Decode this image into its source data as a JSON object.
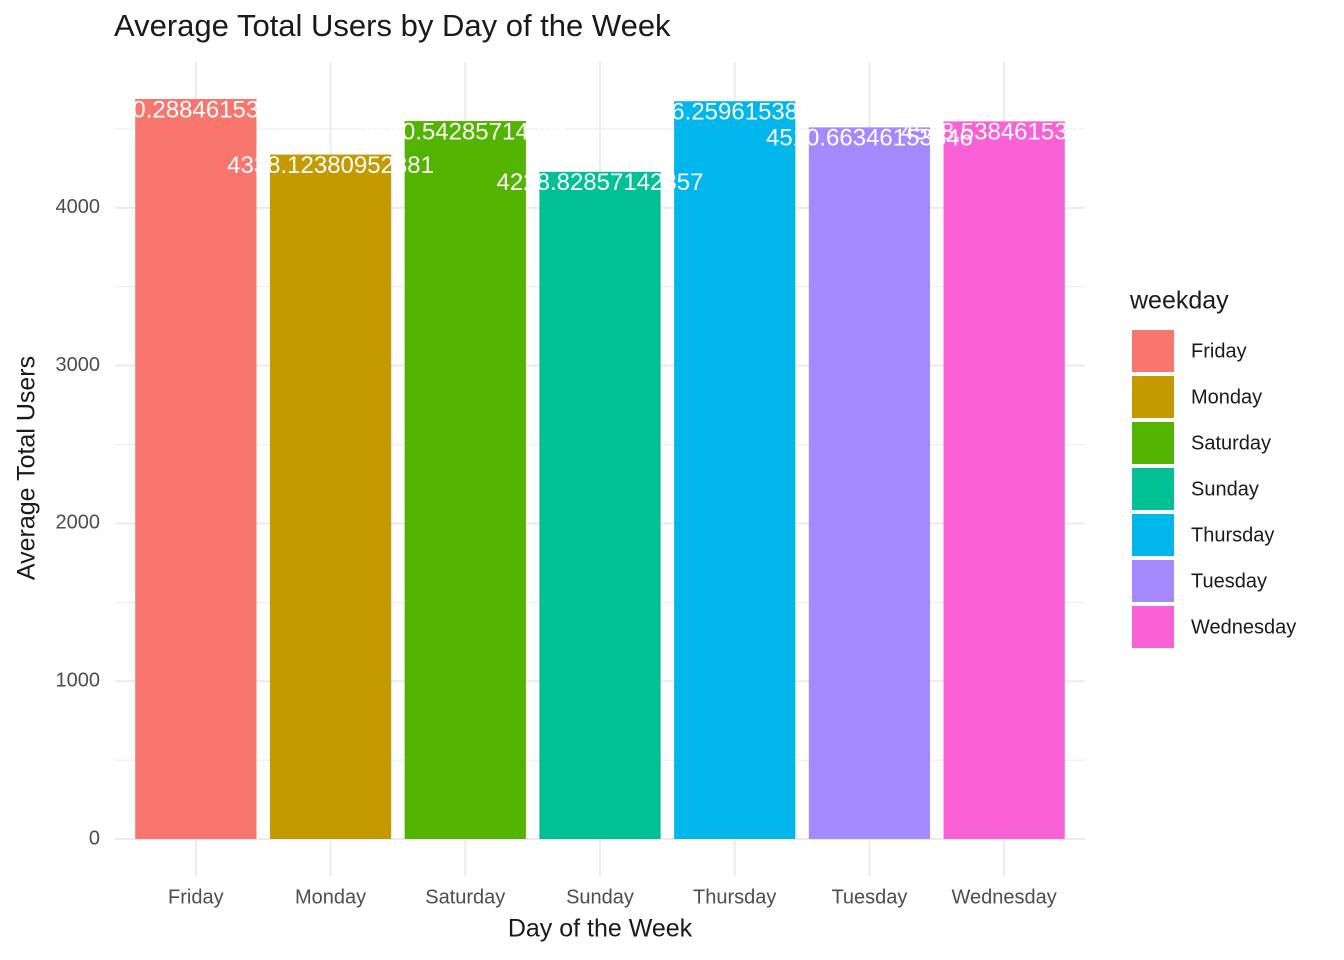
{
  "chart_data": {
    "type": "bar",
    "title": "Average Total Users by Day of the Week",
    "x_label": "Day of the Week",
    "y_label": "Average Total Users",
    "legend_title": "weekday",
    "categories": [
      "Friday",
      "Monday",
      "Saturday",
      "Sunday",
      "Thursday",
      "Tuesday",
      "Wednesday"
    ],
    "values": [
      4690.28846153846,
      4338.12380952381,
      4550.54285714286,
      4228.82857142857,
      4676.25961538462,
      4510.66346153846,
      4548.53846153846
    ],
    "colors": [
      "#F8766D",
      "#C49A00",
      "#53B400",
      "#00C094",
      "#00B6EB",
      "#A58AFF",
      "#FB61D7"
    ],
    "ylim": [
      -234.5,
      4924.8
    ],
    "yticks": [
      0,
      1000,
      2000,
      3000,
      4000
    ],
    "y_minor_ticks": [
      500,
      1500,
      2500,
      3500,
      4500
    ],
    "grid": true,
    "legend": "right"
  }
}
